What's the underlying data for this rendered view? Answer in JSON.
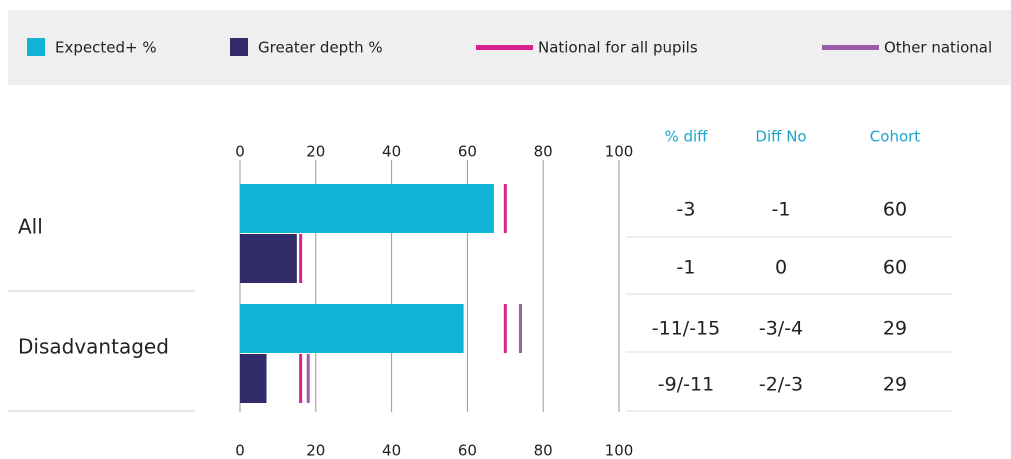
{
  "chart_data": {
    "type": "bar",
    "orientation": "horizontal",
    "categories": [
      "All",
      "Disadvantaged"
    ],
    "series": [
      {
        "name": "Expected+ %",
        "color": "#13b3d6",
        "values": [
          67,
          59
        ]
      },
      {
        "name": "Greater depth %",
        "color": "#332c6b",
        "values": [
          15,
          7
        ]
      }
    ],
    "markers": [
      {
        "name": "National for all pupils",
        "color": "#d6218e",
        "values": [
          [
            70,
            70
          ],
          [
            16,
            16
          ]
        ]
      },
      {
        "name": "Other national",
        "color": "#9c5ca8",
        "values": [
          [
            null,
            74
          ],
          [
            null,
            18
          ]
        ]
      }
    ],
    "xlim": [
      0,
      100
    ],
    "xticks": [
      0,
      20,
      40,
      60,
      80,
      100
    ],
    "grid": true
  },
  "table": {
    "columns": [
      "% diff",
      "Diff No",
      "Cohort"
    ],
    "rows": [
      [
        "-3",
        "-1",
        "60"
      ],
      [
        "-1",
        "0",
        "60"
      ],
      [
        "-11/-15",
        "-3/-4",
        "29"
      ],
      [
        "-9/-11",
        "-2/-3",
        "29"
      ]
    ]
  }
}
